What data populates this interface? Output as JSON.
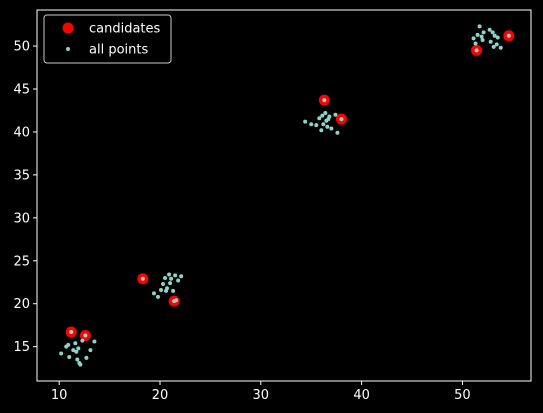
{
  "chart_data": {
    "type": "scatter",
    "title": "",
    "xlabel": "",
    "ylabel": "",
    "xlim": [
      7.8,
      56.8
    ],
    "ylim": [
      11.0,
      54.2
    ],
    "xticks": [
      10,
      20,
      30,
      40,
      50
    ],
    "yticks": [
      15,
      20,
      25,
      30,
      35,
      40,
      45,
      50
    ],
    "grid": false,
    "legend_position": "top-left",
    "colors": {
      "background": "#000000",
      "axes": "#ffffff",
      "candidates": "#ff0000",
      "all_points": "#8dd3c7"
    },
    "series": [
      {
        "name": "candidates",
        "marker": "large-circle",
        "points": [
          [
            11.2,
            16.7
          ],
          [
            12.6,
            16.3
          ],
          [
            18.3,
            22.9
          ],
          [
            21.4,
            20.3
          ],
          [
            36.3,
            43.7
          ],
          [
            38.0,
            41.5
          ],
          [
            51.4,
            49.5
          ],
          [
            54.6,
            51.2
          ]
        ]
      },
      {
        "name": "all points",
        "marker": "small-circle",
        "points": [
          [
            11.2,
            16.7
          ],
          [
            12.6,
            16.3
          ],
          [
            10.2,
            14.2
          ],
          [
            10.7,
            15.0
          ],
          [
            11.0,
            13.8
          ],
          [
            11.4,
            14.6
          ],
          [
            11.6,
            15.4
          ],
          [
            11.8,
            13.5
          ],
          [
            12.0,
            13.1
          ],
          [
            11.9,
            14.8
          ],
          [
            12.3,
            15.7
          ],
          [
            12.7,
            13.7
          ],
          [
            13.1,
            14.6
          ],
          [
            13.5,
            15.6
          ],
          [
            10.9,
            15.2
          ],
          [
            11.7,
            14.4
          ],
          [
            12.1,
            12.9
          ],
          [
            18.3,
            22.9
          ],
          [
            21.4,
            20.3
          ],
          [
            19.4,
            21.2
          ],
          [
            19.8,
            20.8
          ],
          [
            20.1,
            21.6
          ],
          [
            20.3,
            22.3
          ],
          [
            20.5,
            23.0
          ],
          [
            20.7,
            21.8
          ],
          [
            20.9,
            23.4
          ],
          [
            21.1,
            22.9
          ],
          [
            21.3,
            21.5
          ],
          [
            21.5,
            23.3
          ],
          [
            21.8,
            22.7
          ],
          [
            22.1,
            23.2
          ],
          [
            20.6,
            21.5
          ],
          [
            21.0,
            22.4
          ],
          [
            21.6,
            20.4
          ],
          [
            36.3,
            43.7
          ],
          [
            38.0,
            41.5
          ],
          [
            34.4,
            41.2
          ],
          [
            35.0,
            40.9
          ],
          [
            35.5,
            40.8
          ],
          [
            35.8,
            41.6
          ],
          [
            36.0,
            40.2
          ],
          [
            36.1,
            41.9
          ],
          [
            36.4,
            42.2
          ],
          [
            36.5,
            41.3
          ],
          [
            36.6,
            40.6
          ],
          [
            36.8,
            41.8
          ],
          [
            37.0,
            40.4
          ],
          [
            37.4,
            42.0
          ],
          [
            37.6,
            39.9
          ],
          [
            36.2,
            40.9
          ],
          [
            36.7,
            41.5
          ],
          [
            51.4,
            49.5
          ],
          [
            54.6,
            51.2
          ],
          [
            51.1,
            50.9
          ],
          [
            51.5,
            51.3
          ],
          [
            51.7,
            52.3
          ],
          [
            51.9,
            51.1
          ],
          [
            52.0,
            50.7
          ],
          [
            52.7,
            51.9
          ],
          [
            52.8,
            50.5
          ],
          [
            53.0,
            51.6
          ],
          [
            53.2,
            51.2
          ],
          [
            53.1,
            49.9
          ],
          [
            53.5,
            51.0
          ],
          [
            53.8,
            49.8
          ],
          [
            52.1,
            51.6
          ],
          [
            51.3,
            50.3
          ],
          [
            53.4,
            50.2
          ]
        ]
      }
    ]
  }
}
